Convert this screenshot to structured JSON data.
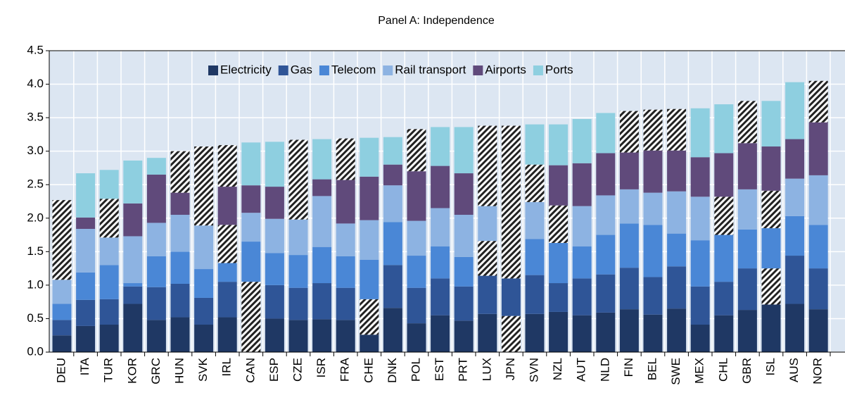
{
  "chart_data": {
    "type": "stacked_bar",
    "title": "Panel A: Independence",
    "categories": [
      "DEU",
      "ITA",
      "TUR",
      "KOR",
      "GRC",
      "HUN",
      "SVK",
      "IRL",
      "CAN",
      "ESP",
      "CZE",
      "ISR",
      "FRA",
      "CHE",
      "DNK",
      "POL",
      "EST",
      "PRT",
      "LUX",
      "JPN",
      "SVN",
      "NZL",
      "AUT",
      "NLD",
      "FIN",
      "BEL",
      "SWE",
      "MEX",
      "CHL",
      "GBR",
      "ISL",
      "AUS",
      "NOR"
    ],
    "series": [
      {
        "name": "Electricity",
        "color": "#1f3864",
        "values": [
          0.25,
          0.39,
          0.41,
          0.72,
          0.48,
          0.52,
          0.41,
          0.52,
          1.05,
          0.5,
          0.48,
          0.49,
          0.48,
          0.26,
          0.66,
          0.43,
          0.55,
          0.47,
          0.57,
          0.54,
          0.57,
          0.6,
          0.55,
          0.59,
          0.64,
          0.56,
          0.65,
          0.41,
          0.55,
          0.63,
          0.71,
          0.72,
          0.64
        ],
        "hatched": [
          false,
          false,
          false,
          false,
          false,
          false,
          false,
          false,
          true,
          false,
          false,
          false,
          false,
          false,
          false,
          false,
          false,
          false,
          false,
          true,
          false,
          false,
          false,
          false,
          false,
          false,
          false,
          false,
          false,
          false,
          false,
          false,
          false
        ]
      },
      {
        "name": "Gas",
        "color": "#2f5597",
        "values": [
          0.23,
          0.39,
          0.38,
          0.26,
          0.49,
          0.5,
          0.4,
          0.53,
          0,
          0.5,
          0.48,
          0.54,
          0.48,
          0.53,
          0.64,
          0.53,
          0.55,
          0.51,
          0.57,
          0.56,
          0.58,
          0.43,
          0.55,
          0.57,
          0.62,
          0.56,
          0.63,
          0.57,
          0.5,
          0.62,
          0.54,
          0.72,
          0.61
        ],
        "hatched": [
          false,
          false,
          false,
          false,
          false,
          false,
          false,
          false,
          false,
          false,
          false,
          false,
          false,
          true,
          false,
          false,
          false,
          false,
          false,
          false,
          false,
          false,
          false,
          false,
          false,
          false,
          false,
          false,
          false,
          false,
          true,
          false,
          false
        ]
      },
      {
        "name": "Telecom",
        "color": "#4a87d6",
        "values": [
          0.24,
          0.41,
          0.51,
          0.05,
          0.46,
          0.48,
          0.43,
          0.28,
          0.6,
          0.48,
          0.49,
          0.54,
          0.47,
          0.59,
          0.64,
          0.48,
          0.48,
          0.44,
          0.52,
          0,
          0.54,
          0.6,
          0.48,
          0.59,
          0.66,
          0.78,
          0.49,
          0.69,
          0.7,
          0.58,
          0.6,
          0.59,
          0.65
        ],
        "hatched": [
          false,
          false,
          false,
          false,
          false,
          false,
          false,
          false,
          false,
          false,
          false,
          false,
          false,
          false,
          false,
          false,
          false,
          false,
          true,
          false,
          false,
          false,
          false,
          false,
          false,
          false,
          false,
          false,
          false,
          false,
          false,
          false,
          false
        ]
      },
      {
        "name": "Rail transport",
        "color": "#8db3e2",
        "values": [
          0.36,
          0.65,
          0.41,
          0.7,
          0.5,
          0.55,
          0.65,
          0.57,
          0.43,
          0.51,
          0.53,
          0.76,
          0.49,
          0.59,
          0.55,
          0.52,
          0.57,
          0.63,
          0.52,
          0,
          0.55,
          0.56,
          0.6,
          0.59,
          0.51,
          0.48,
          0.63,
          0.65,
          0.57,
          0.6,
          0.56,
          0.56,
          0.74
        ],
        "hatched": [
          false,
          false,
          false,
          false,
          false,
          false,
          false,
          true,
          false,
          false,
          false,
          false,
          false,
          false,
          false,
          false,
          false,
          false,
          false,
          false,
          false,
          true,
          false,
          false,
          false,
          false,
          false,
          false,
          true,
          false,
          true,
          false,
          false
        ]
      },
      {
        "name": "Airports",
        "color": "#604a7b",
        "values": [
          1.19,
          0.17,
          0.58,
          0.49,
          0.72,
          0.33,
          1.18,
          0.57,
          0.41,
          0.48,
          1.19,
          0.25,
          0.65,
          0.65,
          0.31,
          0.74,
          0.63,
          0.62,
          1.2,
          2.28,
          0.56,
          0.6,
          0.64,
          0.63,
          0.55,
          0.63,
          0.61,
          0.59,
          0.65,
          0.69,
          0.66,
          0.59,
          0.79
        ],
        "hatched": [
          true,
          false,
          true,
          false,
          false,
          false,
          true,
          false,
          false,
          false,
          true,
          false,
          false,
          false,
          false,
          false,
          false,
          false,
          true,
          true,
          true,
          false,
          false,
          false,
          false,
          false,
          false,
          false,
          false,
          false,
          false,
          false,
          false
        ]
      },
      {
        "name": "Ports",
        "color": "#8ecfe0",
        "values": [
          0,
          0.66,
          0.43,
          0.64,
          0.25,
          0.62,
          0,
          0.62,
          0.64,
          0.67,
          0,
          0.6,
          0.62,
          0.58,
          0.41,
          0.63,
          0.58,
          0.69,
          0,
          0,
          0.6,
          0.61,
          0.66,
          0.6,
          0.62,
          0.61,
          0.62,
          0.73,
          0.73,
          0.63,
          0.68,
          0.85,
          0.62
        ],
        "hatched": [
          false,
          false,
          false,
          false,
          false,
          true,
          false,
          true,
          false,
          false,
          false,
          false,
          true,
          false,
          false,
          true,
          false,
          false,
          false,
          false,
          false,
          false,
          false,
          false,
          true,
          true,
          true,
          false,
          false,
          true,
          false,
          false,
          true
        ]
      }
    ],
    "ylim": [
      0,
      4.5
    ],
    "yticks": [
      {
        "value": 0,
        "label": "0.0"
      },
      0.5,
      {
        "value": 1,
        "label": "1.0"
      },
      1.5,
      {
        "value": 2,
        "label": "2.0"
      },
      2.5,
      {
        "value": 3,
        "label": "3.0"
      },
      3.5,
      {
        "value": 4,
        "label": "4.0"
      },
      4.5
    ],
    "grid": true
  }
}
